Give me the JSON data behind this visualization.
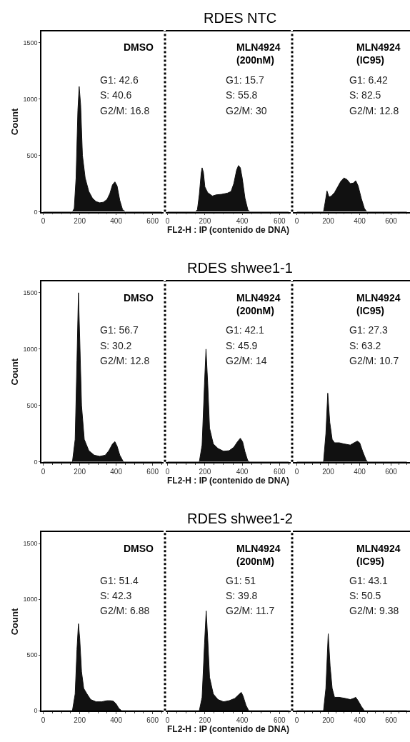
{
  "chart_data": [
    {
      "type": "area",
      "ylabel": "Count",
      "annotations": [
        "DMSO",
        "G1: 42.6",
        "S: 40.6",
        "G2/M: 16.8"
      ],
      "xlim": [
        -10,
        660
      ],
      "xticks": [
        0,
        200,
        400,
        600
      ],
      "ylim": [
        0,
        1600
      ],
      "yticks": [
        0,
        500,
        1000,
        1500
      ],
      "series": [
        {
          "color": "#111111",
          "x": [
            0,
            160,
            170,
            180,
            190,
            197,
            205,
            215,
            230,
            250,
            270,
            290,
            310,
            330,
            350,
            365,
            380,
            393,
            405,
            420,
            435,
            450,
            650
          ],
          "values": [
            0,
            0,
            30,
            300,
            900,
            1110,
            950,
            500,
            300,
            180,
            120,
            90,
            80,
            85,
            110,
            160,
            240,
            265,
            230,
            100,
            20,
            0,
            0
          ]
        }
      ]
    },
    {
      "type": "area",
      "title": "RDES NTC",
      "xlabel": "FL2-H : IP (contenido de DNA)",
      "annotations": [
        "MLN4924\n(200nM)",
        "G1: 15.7",
        "S: 55.8",
        "G2/M: 30"
      ],
      "xlim": [
        -10,
        660
      ],
      "xticks": [
        0,
        200,
        400,
        600
      ],
      "ylim": [
        0,
        1600
      ],
      "yticks": [
        0,
        500,
        1000,
        1500
      ],
      "tick_labels": "x",
      "series": [
        {
          "color": "#111111",
          "x": [
            0,
            150,
            160,
            170,
            180,
            185,
            192,
            200,
            215,
            240,
            260,
            290,
            320,
            340,
            355,
            370,
            380,
            390,
            400,
            415,
            430,
            440,
            650
          ],
          "values": [
            0,
            0,
            20,
            150,
            340,
            390,
            350,
            220,
            170,
            140,
            150,
            155,
            165,
            180,
            250,
            370,
            410,
            390,
            300,
            120,
            20,
            0,
            0
          ]
        }
      ]
    },
    {
      "type": "area",
      "annotations": [
        "MLN4924\n(IC95)",
        "G1: 6.42",
        "S: 82.5",
        "G2/M: 12.8"
      ],
      "xlim": [
        -25,
        720
      ],
      "xticks": [
        0,
        200,
        400,
        600
      ],
      "ylim": [
        0,
        1600
      ],
      "yticks": [
        0,
        500,
        1000,
        1500
      ],
      "tick_labels": "x",
      "series": [
        {
          "color": "#111111",
          "x": [
            0,
            170,
            180,
            192,
            205,
            220,
            240,
            260,
            280,
            300,
            320,
            340,
            360,
            375,
            390,
            410,
            430,
            445,
            700
          ],
          "values": [
            0,
            0,
            80,
            185,
            130,
            140,
            170,
            220,
            270,
            300,
            285,
            250,
            255,
            275,
            230,
            120,
            30,
            0,
            0
          ]
        }
      ]
    },
    {
      "type": "area",
      "ylabel": "Count",
      "annotations": [
        "DMSO",
        "G1: 56.7",
        "S: 30.2",
        "G2/M: 12.8"
      ],
      "xlim": [
        -10,
        660
      ],
      "xticks": [
        0,
        200,
        400,
        600
      ],
      "ylim": [
        0,
        1600
      ],
      "yticks": [
        0,
        500,
        1000,
        1500
      ],
      "series": [
        {
          "color": "#111111",
          "x": [
            0,
            160,
            175,
            185,
            193,
            200,
            210,
            225,
            250,
            280,
            310,
            340,
            360,
            380,
            393,
            405,
            420,
            440,
            650
          ],
          "values": [
            0,
            0,
            200,
            900,
            1500,
            1100,
            500,
            200,
            100,
            60,
            50,
            60,
            100,
            160,
            180,
            140,
            60,
            0,
            0
          ]
        }
      ]
    },
    {
      "type": "area",
      "title": "RDES shwee1-1",
      "xlabel": "FL2-H : IP (contenido de DNA)",
      "annotations": [
        "MLN4924\n(200nM)",
        "G1: 42.1",
        "S: 45.9",
        "G2/M: 14"
      ],
      "xlim": [
        -10,
        660
      ],
      "xticks": [
        0,
        200,
        400,
        600
      ],
      "ylim": [
        0,
        1600
      ],
      "yticks": [
        0,
        500,
        1000,
        1500
      ],
      "tick_labels": "x",
      "series": [
        {
          "color": "#111111",
          "x": [
            0,
            170,
            185,
            198,
            206,
            215,
            225,
            245,
            270,
            300,
            330,
            355,
            375,
            390,
            402,
            415,
            430,
            440,
            650
          ],
          "values": [
            0,
            0,
            150,
            700,
            1000,
            700,
            300,
            160,
            120,
            95,
            100,
            130,
            180,
            210,
            180,
            90,
            10,
            0,
            0
          ]
        }
      ]
    },
    {
      "type": "area",
      "annotations": [
        "MLN4924\n(IC95)",
        "G1: 27.3",
        "S: 63.2",
        "G2/M: 10.7"
      ],
      "xlim": [
        -25,
        720
      ],
      "xticks": [
        0,
        200,
        400,
        600
      ],
      "ylim": [
        0,
        1600
      ],
      "yticks": [
        0,
        500,
        1000,
        1500
      ],
      "tick_labels": "x",
      "series": [
        {
          "color": "#111111",
          "x": [
            0,
            170,
            185,
            197,
            210,
            225,
            240,
            270,
            300,
            340,
            365,
            385,
            400,
            420,
            440,
            450,
            700
          ],
          "values": [
            0,
            0,
            250,
            610,
            350,
            200,
            170,
            170,
            160,
            150,
            170,
            185,
            170,
            90,
            20,
            0,
            0
          ]
        }
      ]
    },
    {
      "type": "area",
      "ylabel": "Count",
      "annotations": [
        "DMSO",
        "G1: 51.4",
        "S: 42.3",
        "G2/M: 6.88"
      ],
      "xlim": [
        -10,
        660
      ],
      "xticks": [
        0,
        200,
        400,
        600
      ],
      "ylim": [
        0,
        1600
      ],
      "yticks": [
        0,
        500,
        1000,
        1500
      ],
      "series": [
        {
          "color": "#111111",
          "x": [
            0,
            160,
            175,
            185,
            193,
            200,
            210,
            222,
            240,
            260,
            290,
            320,
            350,
            370,
            385,
            400,
            415,
            430,
            650
          ],
          "values": [
            0,
            0,
            150,
            550,
            780,
            650,
            350,
            200,
            150,
            100,
            80,
            80,
            90,
            90,
            85,
            60,
            20,
            0,
            0
          ]
        }
      ]
    },
    {
      "type": "area",
      "title": "RDES shwee1-2",
      "xlabel": "FL2-H : IP (contenido de DNA)",
      "annotations": [
        "MLN4924\n(200nM)",
        "G1: 51",
        "S: 39.8",
        "G2/M: 11.7"
      ],
      "xlim": [
        -10,
        660
      ],
      "xticks": [
        0,
        200,
        400,
        600
      ],
      "ylim": [
        0,
        1600
      ],
      "yticks": [
        0,
        500,
        1000,
        1500
      ],
      "tick_labels": "x",
      "series": [
        {
          "color": "#111111",
          "x": [
            0,
            170,
            185,
            198,
            207,
            215,
            225,
            245,
            270,
            300,
            330,
            360,
            385,
            395,
            405,
            420,
            435,
            650
          ],
          "values": [
            0,
            0,
            120,
            600,
            895,
            650,
            300,
            150,
            100,
            80,
            90,
            110,
            150,
            165,
            130,
            50,
            0,
            0
          ]
        }
      ]
    },
    {
      "type": "area",
      "annotations": [
        "MLN4924\n(IC95)",
        "G1: 43.1",
        "S: 50.5",
        "G2/M: 9.38"
      ],
      "xlim": [
        -25,
        720
      ],
      "xticks": [
        0,
        200,
        400,
        600
      ],
      "ylim": [
        0,
        1600
      ],
      "yticks": [
        0,
        500,
        1000,
        1500
      ],
      "tick_labels": "x",
      "series": [
        {
          "color": "#111111",
          "x": [
            0,
            170,
            185,
            200,
            212,
            225,
            240,
            270,
            310,
            340,
            360,
            375,
            390,
            410,
            430,
            700
          ],
          "values": [
            0,
            0,
            200,
            690,
            400,
            200,
            120,
            120,
            110,
            100,
            110,
            120,
            90,
            40,
            0,
            0
          ]
        }
      ]
    }
  ]
}
